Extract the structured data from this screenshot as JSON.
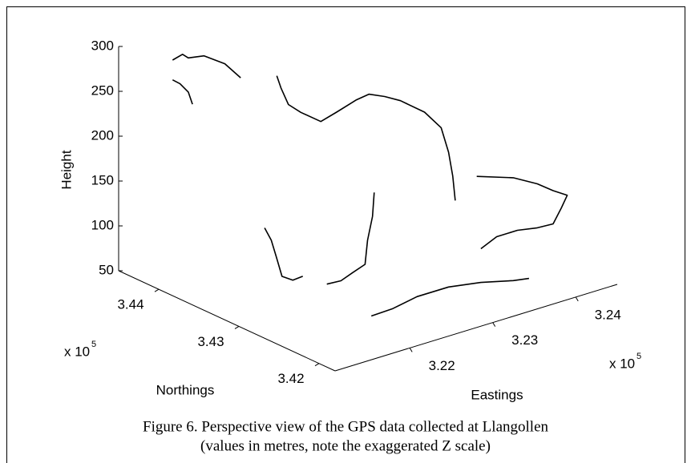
{
  "chart_data": {
    "type": "line3d",
    "xlabel": "Eastings",
    "ylabel": "Northings",
    "zlabel": "Height",
    "x_multiplier": "x 10",
    "x_exponent": "5",
    "y_multiplier": "x 10",
    "y_exponent": "5",
    "caption": [
      "Figure 6. Perspective view of the GPS data collected at Llangollen",
      "(values in metres, note the exaggerated Z scale)"
    ],
    "xlim": [
      321100,
      324500
    ],
    "xticks": [
      {
        "value": 322000,
        "label": "3.22"
      },
      {
        "value": 323000,
        "label": "3.23"
      },
      {
        "value": 324000,
        "label": "3.24"
      }
    ],
    "ylim": [
      341800,
      344500
    ],
    "yticks": [
      {
        "value": 342000,
        "label": "3.42"
      },
      {
        "value": 343000,
        "label": "3.43"
      },
      {
        "value": 344000,
        "label": "3.44"
      }
    ],
    "zlim": [
      50,
      300
    ],
    "zticks": [
      50,
      100,
      150,
      200,
      250,
      300
    ],
    "series": [
      {
        "color": "#000000",
        "x": [
          321460,
          321580,
          321650,
          321840,
          322090,
          322280
        ],
        "y": [
          344200,
          344200,
          344200,
          344200,
          344200,
          344200
        ],
        "z": [
          287,
          290,
          284,
          281,
          265,
          244
        ]
      },
      {
        "color": "#000000",
        "x": [
          321460,
          321550,
          321650,
          321700
        ],
        "y": [
          344200,
          344200,
          344200,
          344200
        ],
        "z": [
          265,
          258,
          246,
          231
        ]
      },
      {
        "color": "#000000",
        "x": [
          322040,
          322090,
          322180,
          322330,
          322570,
          322760,
          323000,
          323150,
          323340,
          323530,
          323820,
          324020,
          324110,
          324160,
          324190
        ],
        "y": [
          343500,
          343500,
          343500,
          343500,
          343500,
          343500,
          343500,
          343500,
          343500,
          343500,
          343500,
          343500,
          343500,
          343500,
          343500
        ],
        "z": [
          282,
          267,
          246,
          233,
          216,
          221,
          228,
          230,
          222,
          212,
          191,
          168,
          138,
          110,
          82
        ]
      },
      {
        "color": "#000000",
        "x": [
          322730,
          322710,
          322650,
          322620,
          322470,
          322330,
          322160
        ],
        "y": [
          343000,
          343000,
          343000,
          343000,
          343000,
          343000,
          343000
        ],
        "z": [
          153,
          127,
          102,
          76,
          71,
          66,
          67
        ]
      },
      {
        "color": "#000000",
        "x": [
          321410,
          321490,
          321550,
          321620,
          321750,
          321870
        ],
        "y": [
          343000,
          343000,
          343000,
          343000,
          343000,
          343000
        ],
        "z": [
          151,
          135,
          115,
          91,
          83,
          84
        ]
      },
      {
        "color": "#000000",
        "x": [
          323290,
          323730,
          324020,
          324210,
          324380,
          324310,
          324210,
          324020,
          323780,
          323530,
          323340
        ],
        "y": [
          342300,
          342300,
          342300,
          342300,
          342300,
          342300,
          342300,
          342300,
          342300,
          342300,
          342300
        ],
        "z": [
          184,
          170,
          155,
          142,
          132,
          120,
          105,
          106,
          110,
          110,
          102
        ]
      },
      {
        "color": "#000000",
        "x": [
          321730,
          321990,
          322280,
          322660,
          323050,
          323440,
          323630
        ],
        "y": [
          342000,
          342000,
          342000,
          342000,
          342000,
          342000,
          342000
        ],
        "z": [
          85,
          86,
          91,
          91,
          85,
          76,
          73
        ]
      }
    ]
  }
}
